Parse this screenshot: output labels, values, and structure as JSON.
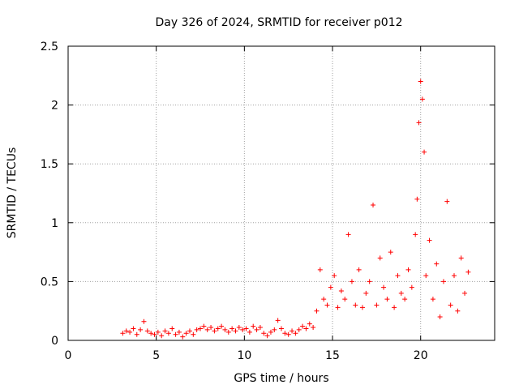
{
  "chart_data": {
    "type": "scatter",
    "title": "Day 326 of 2024, SRMTID for receiver p012",
    "xlabel": "GPS time / hours",
    "ylabel": "SRMTID / TECUs",
    "xlim": [
      0,
      24.2
    ],
    "ylim": [
      0,
      2.5
    ],
    "x_ticks": [
      "0",
      "5",
      "10",
      "15",
      "20"
    ],
    "y_ticks": [
      "0",
      "0.5",
      "1",
      "1.5",
      "2",
      "2.5"
    ],
    "grid": true,
    "marker": "+",
    "colors": {
      "series": "#ff0000",
      "grid": "#a0a0a0",
      "axes": "#000000"
    },
    "series": [
      {
        "name": "SRMTID",
        "x": [
          3.1,
          3.3,
          3.5,
          3.7,
          3.9,
          4.1,
          4.3,
          4.5,
          4.7,
          4.9,
          5.1,
          5.3,
          5.5,
          5.7,
          5.9,
          6.1,
          6.3,
          6.5,
          6.7,
          6.9,
          7.1,
          7.3,
          7.5,
          7.7,
          7.9,
          8.1,
          8.3,
          8.5,
          8.7,
          8.9,
          9.1,
          9.3,
          9.5,
          9.7,
          9.9,
          10.1,
          10.3,
          10.5,
          10.7,
          10.9,
          11.1,
          11.3,
          11.5,
          11.7,
          11.9,
          12.1,
          12.3,
          12.5,
          12.7,
          12.9,
          13.1,
          13.3,
          13.5,
          13.7,
          13.9,
          14.1,
          14.3,
          14.5,
          14.7,
          14.9,
          15.1,
          15.3,
          15.5,
          15.7,
          15.9,
          16.1,
          16.3,
          16.5,
          16.7,
          16.9,
          17.1,
          17.3,
          17.5,
          17.7,
          17.9,
          18.1,
          18.3,
          18.5,
          18.7,
          18.9,
          19.1,
          19.3,
          19.5,
          19.7,
          19.8,
          19.9,
          20.0,
          20.1,
          20.2,
          20.3,
          20.5,
          20.7,
          20.9,
          21.1,
          21.3,
          21.5,
          21.7,
          21.9,
          22.1,
          22.3,
          22.5,
          22.7
        ],
        "y": [
          0.06,
          0.08,
          0.07,
          0.1,
          0.05,
          0.09,
          0.16,
          0.08,
          0.06,
          0.05,
          0.07,
          0.04,
          0.08,
          0.06,
          0.1,
          0.05,
          0.07,
          0.03,
          0.06,
          0.08,
          0.05,
          0.09,
          0.1,
          0.12,
          0.09,
          0.11,
          0.08,
          0.1,
          0.12,
          0.09,
          0.07,
          0.1,
          0.08,
          0.11,
          0.09,
          0.1,
          0.07,
          0.12,
          0.09,
          0.11,
          0.06,
          0.04,
          0.07,
          0.09,
          0.17,
          0.1,
          0.06,
          0.05,
          0.08,
          0.06,
          0.09,
          0.12,
          0.1,
          0.14,
          0.11,
          0.25,
          0.6,
          0.35,
          0.3,
          0.45,
          0.55,
          0.28,
          0.42,
          0.35,
          0.9,
          0.5,
          0.3,
          0.6,
          0.28,
          0.4,
          0.5,
          1.15,
          0.3,
          0.7,
          0.45,
          0.35,
          0.75,
          0.28,
          0.55,
          0.4,
          0.35,
          0.6,
          0.45,
          0.9,
          1.2,
          1.85,
          2.2,
          2.05,
          1.6,
          0.55,
          0.85,
          0.35,
          0.65,
          0.2,
          0.5,
          1.18,
          0.3,
          0.55,
          0.25,
          0.7,
          0.4,
          0.58
        ]
      }
    ]
  }
}
